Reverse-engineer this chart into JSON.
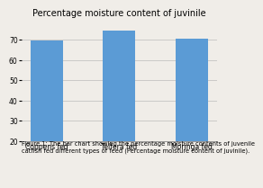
{
  "title": "Percentage moisture content of juvinile",
  "categories": [
    "Coppens fed",
    "Telfera fed",
    "Moringa fed"
  ],
  "values": [
    69.5,
    74.5,
    70.5
  ],
  "bar_color": "#5b9bd5",
  "ylim": [
    20,
    80
  ],
  "yticks": [
    20,
    30,
    40,
    50,
    60,
    70
  ],
  "caption_line1": "Figure 1: The bar chart showing the percentage moisture contents of juvenile",
  "caption_line2": "catfish fed different types of feed (Percentage moisture content of juvinile).",
  "bg_color": "#f0ede8",
  "plot_bg_color": "#f0ede8",
  "grid_color": "#bbbbbb",
  "spine_color": "#888888",
  "title_fontsize": 7,
  "tick_fontsize": 5.5,
  "caption_fontsize": 4.8,
  "bar_width": 0.45
}
